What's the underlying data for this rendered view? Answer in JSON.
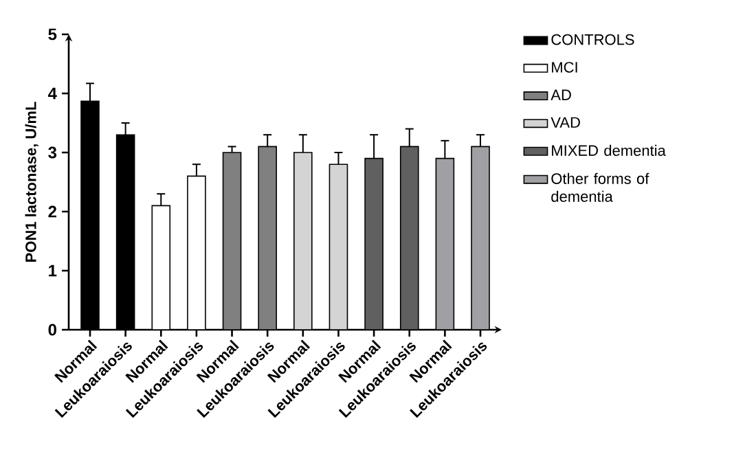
{
  "chart_data": {
    "type": "bar",
    "ylabel": "PON1 lactonase, U/mL",
    "categories": [
      "Normal",
      "Leukoaraiosis",
      "Normal",
      "Leukoaraiosis",
      "Normal",
      "Leukoaraiosis",
      "Normal",
      "Leukoaraiosis",
      "Normal",
      "Leukoaraiosis",
      "Normal",
      "Leukoaraiosis"
    ],
    "series": [
      {
        "name": "CONTROLS",
        "color": "#000000",
        "values": [
          3.87,
          3.3,
          null,
          null,
          null,
          null,
          null,
          null,
          null,
          null,
          null,
          null
        ],
        "errors": [
          0.3,
          0.2,
          null,
          null,
          null,
          null,
          null,
          null,
          null,
          null,
          null,
          null
        ]
      },
      {
        "name": "MCI",
        "color": "#ffffff",
        "values": [
          null,
          null,
          2.1,
          2.6,
          null,
          null,
          null,
          null,
          null,
          null,
          null,
          null
        ],
        "errors": [
          null,
          null,
          0.2,
          0.2,
          null,
          null,
          null,
          null,
          null,
          null,
          null,
          null
        ]
      },
      {
        "name": "AD",
        "color": "#808080",
        "values": [
          null,
          null,
          null,
          null,
          3.0,
          3.1,
          null,
          null,
          null,
          null,
          null,
          null
        ],
        "errors": [
          null,
          null,
          null,
          null,
          0.1,
          0.2,
          null,
          null,
          null,
          null,
          null,
          null
        ]
      },
      {
        "name": "VAD",
        "color": "#d4d4d4",
        "values": [
          null,
          null,
          null,
          null,
          null,
          null,
          3.0,
          2.8,
          null,
          null,
          null,
          null
        ],
        "errors": [
          null,
          null,
          null,
          null,
          null,
          null,
          0.3,
          0.2,
          null,
          null,
          null,
          null
        ]
      },
      {
        "name": "MIXED dementia",
        "color": "#606060",
        "values": [
          null,
          null,
          null,
          null,
          null,
          null,
          null,
          null,
          2.9,
          3.1,
          null,
          null
        ],
        "errors": [
          null,
          null,
          null,
          null,
          null,
          null,
          null,
          null,
          0.4,
          0.3,
          null,
          null
        ]
      },
      {
        "name": "Other forms of dementia",
        "color": "#a0a0a4",
        "values": [
          null,
          null,
          null,
          null,
          null,
          null,
          null,
          null,
          null,
          null,
          2.9,
          3.1
        ],
        "errors": [
          null,
          null,
          null,
          null,
          null,
          null,
          null,
          null,
          null,
          null,
          0.3,
          0.2
        ]
      }
    ],
    "ylim": [
      0,
      5
    ],
    "yticks": [
      0,
      1,
      2,
      3,
      4,
      5
    ],
    "legend": "right"
  }
}
